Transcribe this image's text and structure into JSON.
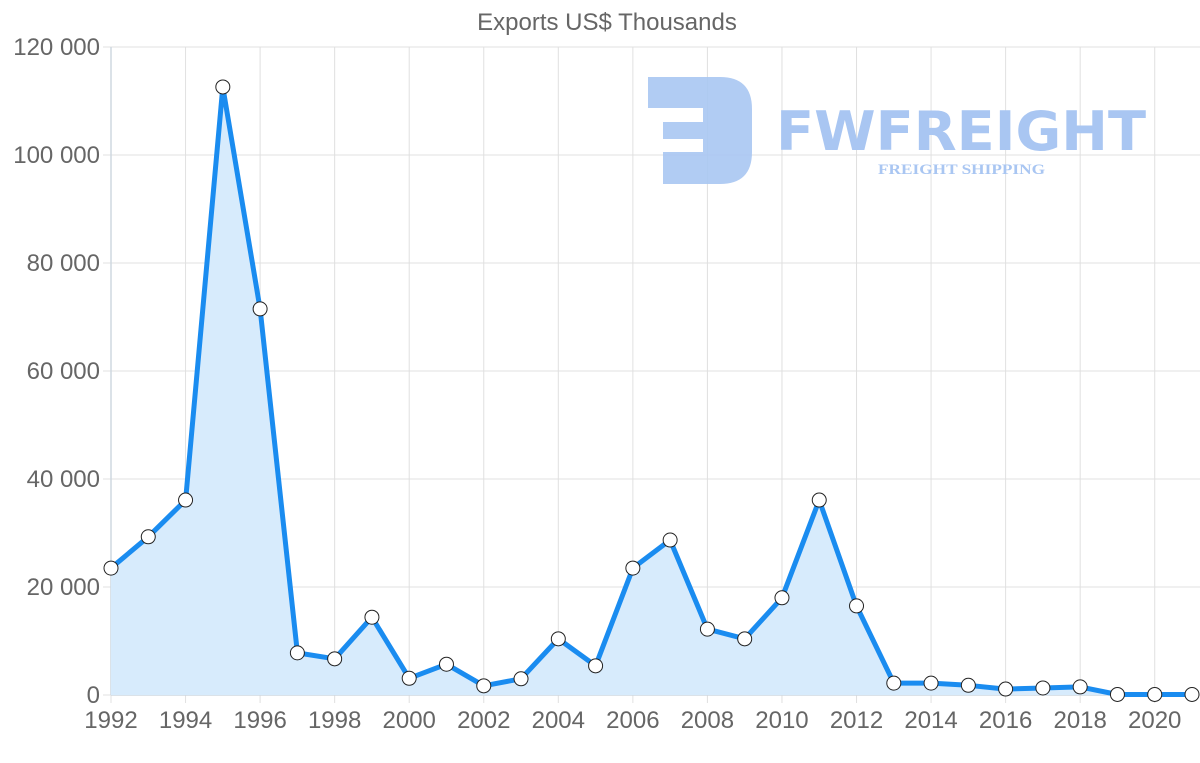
{
  "chart_data": {
    "type": "area",
    "title": "Exports US$ Thousands",
    "xlabel": "",
    "ylabel": "",
    "x": [
      1992,
      1993,
      1994,
      1995,
      1996,
      1997,
      1998,
      1999,
      2000,
      2001,
      2002,
      2003,
      2004,
      2005,
      2006,
      2007,
      2008,
      2009,
      2010,
      2011,
      2012,
      2013,
      2014,
      2015,
      2016,
      2017,
      2018,
      2019,
      2020,
      2021
    ],
    "series": [
      {
        "name": "Exports US$ Thousands",
        "values": [
          23500,
          29300,
          36100,
          112600,
          71500,
          7800,
          6700,
          14400,
          3100,
          5700,
          1700,
          3000,
          10400,
          5400,
          23500,
          28700,
          12200,
          10400,
          18000,
          36100,
          16500,
          2200,
          2200,
          1800,
          1100,
          1300,
          1500,
          100,
          100,
          100
        ],
        "color": "#1a8cf0",
        "fill": "#d7ebfc"
      }
    ],
    "ylim": [
      0,
      120000
    ],
    "y_ticks": [
      0,
      20000,
      40000,
      60000,
      80000,
      100000,
      120000
    ],
    "y_tick_labels": [
      "0",
      "20 000",
      "40 000",
      "60 000",
      "80 000",
      "100 000",
      "120 000"
    ],
    "x_tick_labels": [
      "1992",
      "1994",
      "1996",
      "1998",
      "2000",
      "2002",
      "2004",
      "2006",
      "2008",
      "2010",
      "2012",
      "2014",
      "2016",
      "2018",
      "2020"
    ],
    "grid": true,
    "legend": "none"
  },
  "watermark": {
    "brand": "FWFREIGHT",
    "tagline": "FREIGHT SHIPPING"
  }
}
